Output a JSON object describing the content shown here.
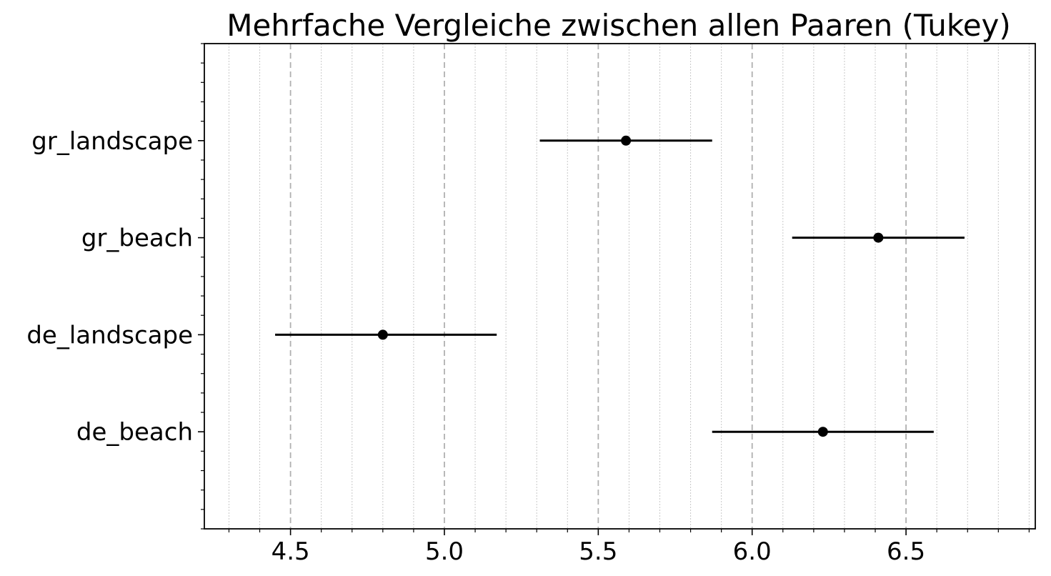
{
  "chart_data": {
    "type": "errorbar",
    "title": "Mehrfache Vergleiche zwischen allen Paaren (Tukey)",
    "xlabel": "",
    "ylabel": "",
    "xlim": [
      4.22,
      6.92
    ],
    "x_major_ticks": [
      4.5,
      5.0,
      5.5,
      6.0,
      6.5
    ],
    "x_tick_labels": [
      "4.5",
      "5.0",
      "5.5",
      "6.0",
      "6.5"
    ],
    "x_minor_step": 0.1,
    "grid": "vertical, major dashed, minor dotted",
    "categories": [
      "gr_landscape",
      "gr_beach",
      "de_landscape",
      "de_beach"
    ],
    "series": [
      {
        "category": "gr_landscape",
        "mean": 5.59,
        "lower": 5.31,
        "upper": 5.87
      },
      {
        "category": "gr_beach",
        "mean": 6.41,
        "lower": 6.13,
        "upper": 6.69
      },
      {
        "category": "de_landscape",
        "mean": 4.8,
        "lower": 4.45,
        "upper": 5.17
      },
      {
        "category": "de_beach",
        "mean": 6.23,
        "lower": 5.87,
        "upper": 6.59
      }
    ],
    "colors": {
      "marker": "#000000",
      "errorbar": "#000000",
      "major_grid": "#b0b0b0",
      "minor_grid": "#c8c8c8"
    }
  }
}
